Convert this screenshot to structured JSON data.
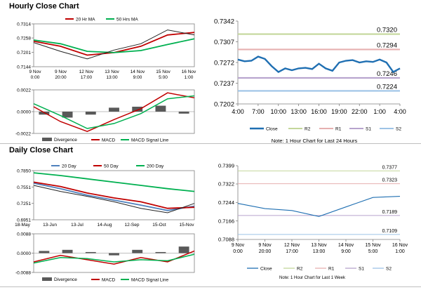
{
  "hourly": {
    "title": "Hourly Close Chart",
    "price": {
      "legend": [
        "20 Hr MA",
        "50 Hrs MA"
      ],
      "yticks": [
        "0.7314",
        "0.7258",
        "0.7201",
        "0.7144"
      ],
      "xticks": [
        [
          "9 Nov",
          "0:00"
        ],
        [
          "9 Nov",
          "20:00"
        ],
        [
          "12 Nov",
          "17:00"
        ],
        [
          "13 Nov",
          "13:00"
        ],
        [
          "14 Nov",
          "9:00"
        ],
        [
          "15 Nov",
          "5:00"
        ],
        [
          "16 Nov",
          "1:00"
        ]
      ]
    },
    "macd": {
      "yticks": [
        "0.0022",
        "0.0000",
        "-0.0022"
      ],
      "legend": [
        "Divergence",
        "MACD",
        "MACD Signal Line"
      ]
    },
    "last24": {
      "yticks": [
        "0.7342",
        "0.7307",
        "0.7272",
        "0.7237",
        "0.7202"
      ],
      "xticks": [
        "4:00",
        "7:00",
        "10:00",
        "13:00",
        "16:00",
        "19:00",
        "22:00",
        "1:00",
        "4:00"
      ],
      "levels": {
        "R2": "0.7320",
        "R1": "0.7294",
        "S1": "0.7246",
        "S2": "0.7224"
      },
      "legend": [
        "Close",
        "R2",
        "R1",
        "S1",
        "S2"
      ],
      "note": "Note: 1 Hour Chart for Last 24 Hours"
    }
  },
  "daily": {
    "title": "Daily Close Chart",
    "price": {
      "legend": [
        "20 Day",
        "50 Day",
        "200 Day"
      ],
      "yticks": [
        "0.7850",
        "0.7551",
        "0.7251",
        "0.6951"
      ],
      "xticks": [
        "18-May",
        "13-Jun",
        "13-Jul",
        "14-Aug",
        "12-Sep",
        "15-Oct",
        "15-Nov"
      ]
    },
    "macd": {
      "yticks": [
        "0.0088",
        "0.0000",
        "-0.0088"
      ],
      "legend": [
        "Divergence",
        "MACD",
        "MACD Signal Line"
      ]
    },
    "lastweek": {
      "yticks": [
        "0.7399",
        "0.7322",
        "0.7244",
        "0.7166",
        "0.7088"
      ],
      "xticks": [
        [
          "9 Nov",
          "0:00"
        ],
        [
          "9 Nov",
          "20:00"
        ],
        [
          "12 Nov",
          "17:00"
        ],
        [
          "13 Nov",
          "13:00"
        ],
        [
          "14 Nov",
          "9:00"
        ],
        [
          "15 Nov",
          "5:00"
        ],
        [
          "16 Nov",
          "1:00"
        ]
      ],
      "levels": {
        "R2": "0.7377",
        "R1": "0.7323",
        "S1": "0.7189",
        "S2": "0.7109"
      },
      "legend": [
        "Close",
        "R2",
        "R1",
        "S1",
        "S2"
      ],
      "note": "Note: 1 Hour Chart for Last 1 Week"
    }
  },
  "colors": {
    "price": "#222222",
    "ma_short": "#c00000",
    "ma_long": "#00b050",
    "ma_blue": "#4f81bd",
    "divergence": "#595959",
    "close": "#1f6fb2",
    "R2": "#c4d79b",
    "R1": "#e6b0b0",
    "S1": "#b7a3cd",
    "S2": "#9dc3e6"
  },
  "chart_data": [
    {
      "type": "line",
      "title": "Hourly Close Chart",
      "x": [
        "9 Nov 0:00",
        "9 Nov 20:00",
        "12 Nov 17:00",
        "13 Nov 13:00",
        "14 Nov 9:00",
        "15 Nov 5:00",
        "16 Nov 1:00"
      ],
      "series": [
        {
          "name": "20 Hr MA",
          "values": [
            0.7245,
            0.7225,
            0.719,
            0.72,
            0.7225,
            0.727,
            0.728
          ]
        },
        {
          "name": "50 Hrs MA",
          "values": [
            0.725,
            0.7235,
            0.7205,
            0.72,
            0.7208,
            0.7232,
            0.7255
          ]
        },
        {
          "values": [
            0.724,
            0.7205,
            0.7175,
            0.721,
            0.7235,
            0.729,
            0.727
          ]
        }
      ],
      "ylim": [
        0.7144,
        0.7314
      ]
    },
    {
      "type": "line",
      "x": [
        "9 Nov 0:00",
        "9 Nov 20:00",
        "12 Nov 17:00",
        "13 Nov 13:00",
        "14 Nov 9:00",
        "15 Nov 5:00",
        "16 Nov 1:00"
      ],
      "series": [
        {
          "name": "MACD",
          "values": [
            0.0005,
            -0.001,
            -0.002,
            -0.0008,
            0.0003,
            0.0019,
            0.0014
          ]
        },
        {
          "name": "MACD Signal Line",
          "values": [
            0.0008,
            -0.0004,
            -0.0017,
            -0.0012,
            -0.0002,
            0.0013,
            0.0016
          ]
        },
        {
          "name": "Divergence",
          "values": [
            -0.0003,
            -0.0006,
            -0.0003,
            0.0004,
            0.0005,
            0.0006,
            -0.0002
          ]
        }
      ],
      "ylim": [
        -0.0022,
        0.0022
      ]
    },
    {
      "type": "line",
      "x": [
        "4:00",
        "5:00",
        "6:00",
        "7:00",
        "8:00",
        "9:00",
        "10:00",
        "11:00",
        "12:00",
        "13:00",
        "14:00",
        "15:00",
        "16:00",
        "17:00",
        "18:00",
        "19:00",
        "20:00",
        "21:00",
        "22:00",
        "23:00",
        "0:00",
        "1:00",
        "2:00",
        "3:00",
        "4:00"
      ],
      "series": [
        {
          "name": "Close",
          "values": [
            0.7277,
            0.7274,
            0.7275,
            0.7282,
            0.7278,
            0.7266,
            0.7256,
            0.7262,
            0.7259,
            0.7262,
            0.7263,
            0.7261,
            0.727,
            0.7262,
            0.7258,
            0.7272,
            0.7275,
            0.7276,
            0.7272,
            0.7274,
            0.7273,
            0.7277,
            0.7272,
            0.7256,
            0.7262
          ]
        }
      ],
      "levels": {
        "R2": 0.732,
        "R1": 0.7294,
        "S1": 0.7246,
        "S2": 0.7224
      },
      "ylim": [
        0.7202,
        0.7342
      ]
    },
    {
      "type": "line",
      "title": "Daily Close Chart",
      "x": [
        "18-May",
        "13-Jun",
        "13-Jul",
        "14-Aug",
        "12-Sep",
        "15-Oct",
        "15-Nov"
      ],
      "series": [
        {
          "name": "20 Day",
          "values": [
            0.762,
            0.752,
            0.74,
            0.731,
            0.722,
            0.712,
            0.72
          ]
        },
        {
          "name": "50 Day",
          "values": [
            0.764,
            0.756,
            0.744,
            0.735,
            0.728,
            0.716,
            0.718
          ]
        },
        {
          "name": "200 Day",
          "values": [
            0.781,
            0.776,
            0.77,
            0.764,
            0.758,
            0.752,
            0.747
          ]
        },
        {
          "values": [
            0.758,
            0.747,
            0.738,
            0.728,
            0.716,
            0.708,
            0.725
          ]
        }
      ],
      "ylim": [
        0.6951,
        0.785
      ]
    },
    {
      "type": "line",
      "x": [
        "18-May",
        "13-Jun",
        "13-Jul",
        "14-Aug",
        "12-Sep",
        "15-Oct",
        "15-Nov"
      ],
      "series": [
        {
          "name": "MACD",
          "values": [
            -0.004,
            -0.001,
            -0.003,
            -0.005,
            -0.002,
            -0.004,
            0.001
          ]
        },
        {
          "name": "MACD Signal Line",
          "values": [
            -0.0045,
            -0.002,
            -0.0025,
            -0.004,
            -0.003,
            -0.0035,
            -0.0005
          ]
        },
        {
          "name": "Divergence",
          "values": [
            0.001,
            0.0015,
            0.0005,
            -0.001,
            0.0015,
            0.0005,
            0.003
          ]
        }
      ],
      "ylim": [
        -0.0088,
        0.0088
      ]
    },
    {
      "type": "line",
      "x": [
        "9 Nov 0:00",
        "9 Nov 20:00",
        "12 Nov 17:00",
        "13 Nov 13:00",
        "14 Nov 9:00",
        "15 Nov 5:00",
        "16 Nov 1:00"
      ],
      "series": [
        {
          "name": "Close",
          "values": [
            0.724,
            0.7218,
            0.721,
            0.7185,
            0.7225,
            0.7265,
            0.727
          ]
        }
      ],
      "levels": {
        "R2": 0.7377,
        "R1": 0.7323,
        "S1": 0.7189,
        "S2": 0.7109
      },
      "ylim": [
        0.7088,
        0.7399
      ]
    }
  ]
}
